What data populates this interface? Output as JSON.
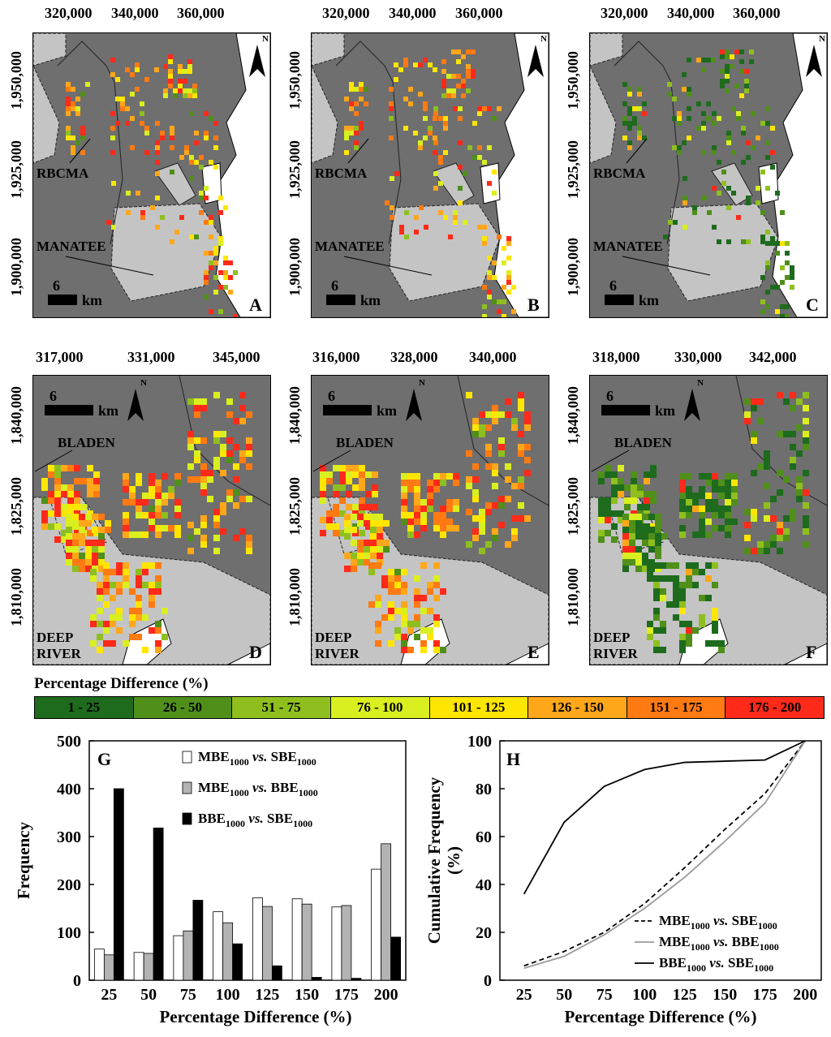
{
  "maps": {
    "top": {
      "x_ticks": [
        "320,000",
        "340,000",
        "360,000"
      ],
      "y_ticks": [
        "1,950,000",
        "1,925,000",
        "1,900,000"
      ],
      "labels": [
        "RBCMA",
        "MANATEE"
      ],
      "scale_value": "6",
      "scale_unit": "km",
      "north": "N",
      "panels": [
        "A",
        "B",
        "C"
      ]
    },
    "bottom": {
      "x_ticks": [
        [
          "317,000",
          "331,000",
          "345,000"
        ],
        [
          "316,000",
          "328,000",
          "340,000"
        ],
        [
          "318,000",
          "330,000",
          "342,000"
        ]
      ],
      "y_ticks": [
        "1,840,000",
        "1,825,000",
        "1,810,000"
      ],
      "labels": [
        "BLADEN",
        "DEEP",
        "RIVER"
      ],
      "scale_value": "6",
      "scale_unit": "km",
      "north": "N",
      "panels": [
        "D",
        "E",
        "F"
      ]
    }
  },
  "legend": {
    "title": "Percentage Difference (%)",
    "classes": [
      {
        "label": "1 - 25",
        "color": "#1e6b1e"
      },
      {
        "label": "26 - 50",
        "color": "#4f8f1a"
      },
      {
        "label": "51 - 75",
        "color": "#8fbf1f"
      },
      {
        "label": "76 - 100",
        "color": "#d9ef1f"
      },
      {
        "label": "101 - 125",
        "color": "#ffe600"
      },
      {
        "label": "126 - 150",
        "color": "#ffa71a"
      },
      {
        "label": "151 - 175",
        "color": "#ff7a12"
      },
      {
        "label": "176 - 200",
        "color": "#ff2a1a"
      }
    ]
  },
  "chart_data": [
    {
      "panel": "G",
      "type": "bar",
      "title": "",
      "xlabel": "Percentage Difference (%)",
      "ylabel": "Frequency",
      "categories": [
        "25",
        "50",
        "75",
        "100",
        "125",
        "150",
        "175",
        "200"
      ],
      "ylim": [
        0,
        500
      ],
      "yticks": [
        0,
        100,
        200,
        300,
        400,
        500
      ],
      "series": [
        {
          "name_main": "MBE",
          "name_sub1": "1000",
          "name_vs": "vs.",
          "name_main2": "SBE",
          "name_sub2": "1000",
          "fill": "#ffffff",
          "values": [
            65,
            58,
            93,
            143,
            172,
            170,
            153,
            232
          ]
        },
        {
          "name_main": "MBE",
          "name_sub1": "1000",
          "name_vs": "vs.",
          "name_main2": "BBE",
          "name_sub2": "1000",
          "fill": "#b3b3b3",
          "values": [
            53,
            56,
            103,
            120,
            154,
            159,
            156,
            285
          ]
        },
        {
          "name_main": "BBE",
          "name_sub1": "1000",
          "name_vs": "vs.",
          "name_main2": "SBE",
          "name_sub2": "1000",
          "fill": "#000000",
          "values": [
            400,
            318,
            167,
            76,
            30,
            6,
            4,
            90
          ]
        }
      ]
    },
    {
      "panel": "H",
      "type": "line",
      "title": "",
      "xlabel": "Percentage Difference (%)",
      "ylabel_line1": "Cumulative Frequency",
      "ylabel_line2": "(%)",
      "x": [
        25,
        50,
        75,
        100,
        125,
        150,
        175,
        200
      ],
      "xlim": [
        10,
        210
      ],
      "ylim": [
        0,
        100
      ],
      "yticks": [
        0,
        20,
        40,
        60,
        80,
        100
      ],
      "series": [
        {
          "name_main": "MBE",
          "name_sub1": "1000",
          "name_vs": "vs.",
          "name_main2": "SBE",
          "name_sub2": "1000",
          "style": "dashed",
          "color": "#000000",
          "values": [
            6,
            12,
            20,
            32,
            47,
            63,
            78,
            100
          ]
        },
        {
          "name_main": "MBE",
          "name_sub1": "1000",
          "name_vs": "vs.",
          "name_main2": "BBE",
          "name_sub2": "1000",
          "style": "solid",
          "color": "#9a9a9a",
          "values": [
            5,
            10,
            19,
            30,
            43,
            58,
            74,
            100
          ]
        },
        {
          "name_main": "BBE",
          "name_sub1": "1000",
          "name_vs": "vs.",
          "name_main2": "SBE",
          "name_sub2": "1000",
          "style": "solid",
          "color": "#000000",
          "values": [
            36,
            66,
            81,
            88,
            91,
            91.5,
            92,
            100
          ]
        }
      ]
    }
  ]
}
